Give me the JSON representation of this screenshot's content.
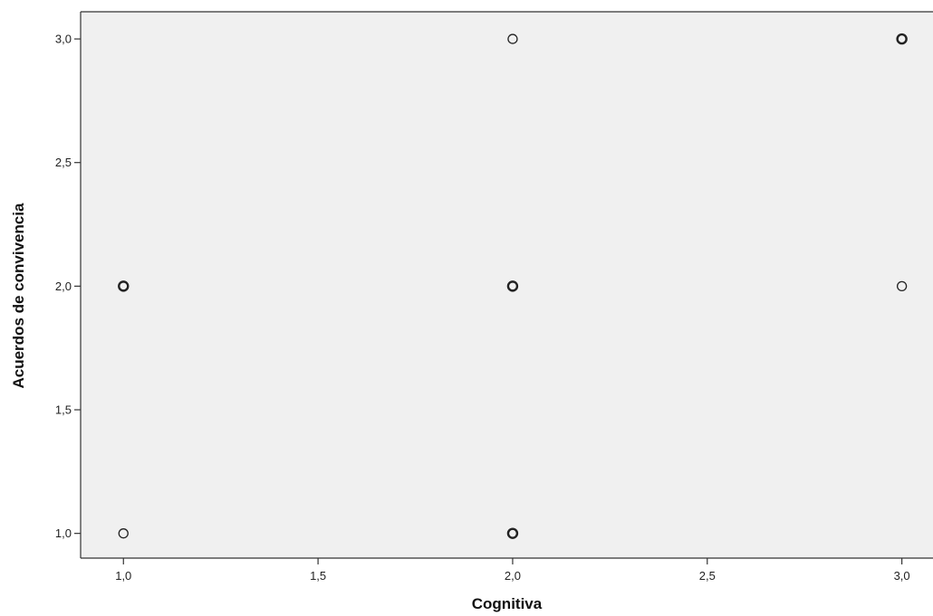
{
  "chart_data": {
    "type": "scatter",
    "title": "",
    "xlabel": "Cognitiva",
    "ylabel": "Acuerdos de convivencia",
    "xlim": [
      0.89,
      3.08
    ],
    "ylim": [
      0.9,
      3.11
    ],
    "x_ticks": [
      1.0,
      1.5,
      2.0,
      2.5,
      3.0
    ],
    "y_ticks": [
      1.0,
      1.5,
      2.0,
      2.5,
      3.0
    ],
    "x_tick_labels": [
      "1,0",
      "1,5",
      "2,0",
      "2,5",
      "3,0"
    ],
    "y_tick_labels": [
      "1,0",
      "1,5",
      "2,0",
      "2,5",
      "3,0"
    ],
    "grid": false,
    "legend": "none",
    "points": [
      {
        "x": 1.0,
        "y": 1.0,
        "overlapping": false
      },
      {
        "x": 1.0,
        "y": 2.0,
        "overlapping": true
      },
      {
        "x": 2.0,
        "y": 1.0,
        "overlapping": true
      },
      {
        "x": 2.0,
        "y": 2.0,
        "overlapping": true
      },
      {
        "x": 2.0,
        "y": 3.0,
        "overlapping": false
      },
      {
        "x": 3.0,
        "y": 2.0,
        "overlapping": false
      },
      {
        "x": 3.0,
        "y": 3.0,
        "overlapping": true
      }
    ],
    "colors": {
      "plot_background": "#f0f0f0",
      "marker_stroke": "#222222",
      "axis": "#333333"
    }
  }
}
